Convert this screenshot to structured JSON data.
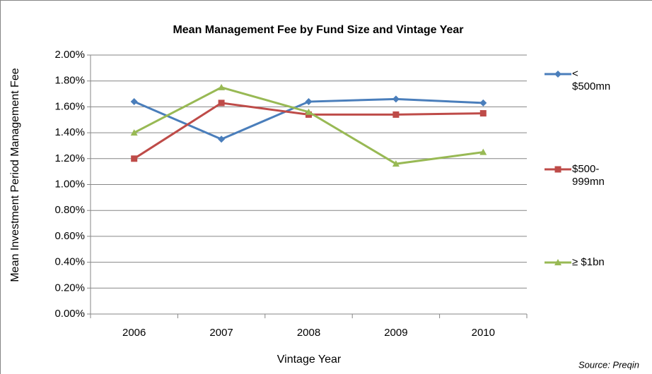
{
  "chart_data": {
    "type": "line",
    "title": "Mean Management Fee by Fund Size and Vintage Year",
    "x_label": "Vintage Year",
    "y_label": "Mean Investment Period Management Fee",
    "source": "Source: Preqin",
    "categories": [
      "2006",
      "2007",
      "2008",
      "2009",
      "2010"
    ],
    "series": [
      {
        "name": "< $500mn",
        "color": "#4a7ebb",
        "marker": "diamond",
        "values": [
          1.64,
          1.35,
          1.64,
          1.66,
          1.63
        ]
      },
      {
        "name": "$500-999mn",
        "color": "#be4b48",
        "marker": "square",
        "values": [
          1.2,
          1.63,
          1.54,
          1.54,
          1.55
        ]
      },
      {
        "name": "≥ $1bn",
        "color": "#98b954",
        "marker": "triangle",
        "values": [
          1.4,
          1.75,
          1.56,
          1.16,
          1.25
        ]
      }
    ],
    "ylim": [
      0,
      2
    ],
    "yticks": [
      {
        "value": 0,
        "label": "0.00%"
      },
      {
        "value": 0.2,
        "label": "0.20%"
      },
      {
        "value": 0.4,
        "label": "0.40%"
      },
      {
        "value": 0.6,
        "label": "0.60%"
      },
      {
        "value": 0.8,
        "label": "0.80%"
      },
      {
        "value": 1,
        "label": "1.00%"
      },
      {
        "value": 1.2,
        "label": "1.20%"
      },
      {
        "value": 1.4,
        "label": "1.40%"
      },
      {
        "value": 1.6,
        "label": "1.60%"
      },
      {
        "value": 1.8,
        "label": "1.80%"
      },
      {
        "value": 2,
        "label": "2.00%"
      }
    ],
    "grid": true,
    "legend": "right"
  }
}
